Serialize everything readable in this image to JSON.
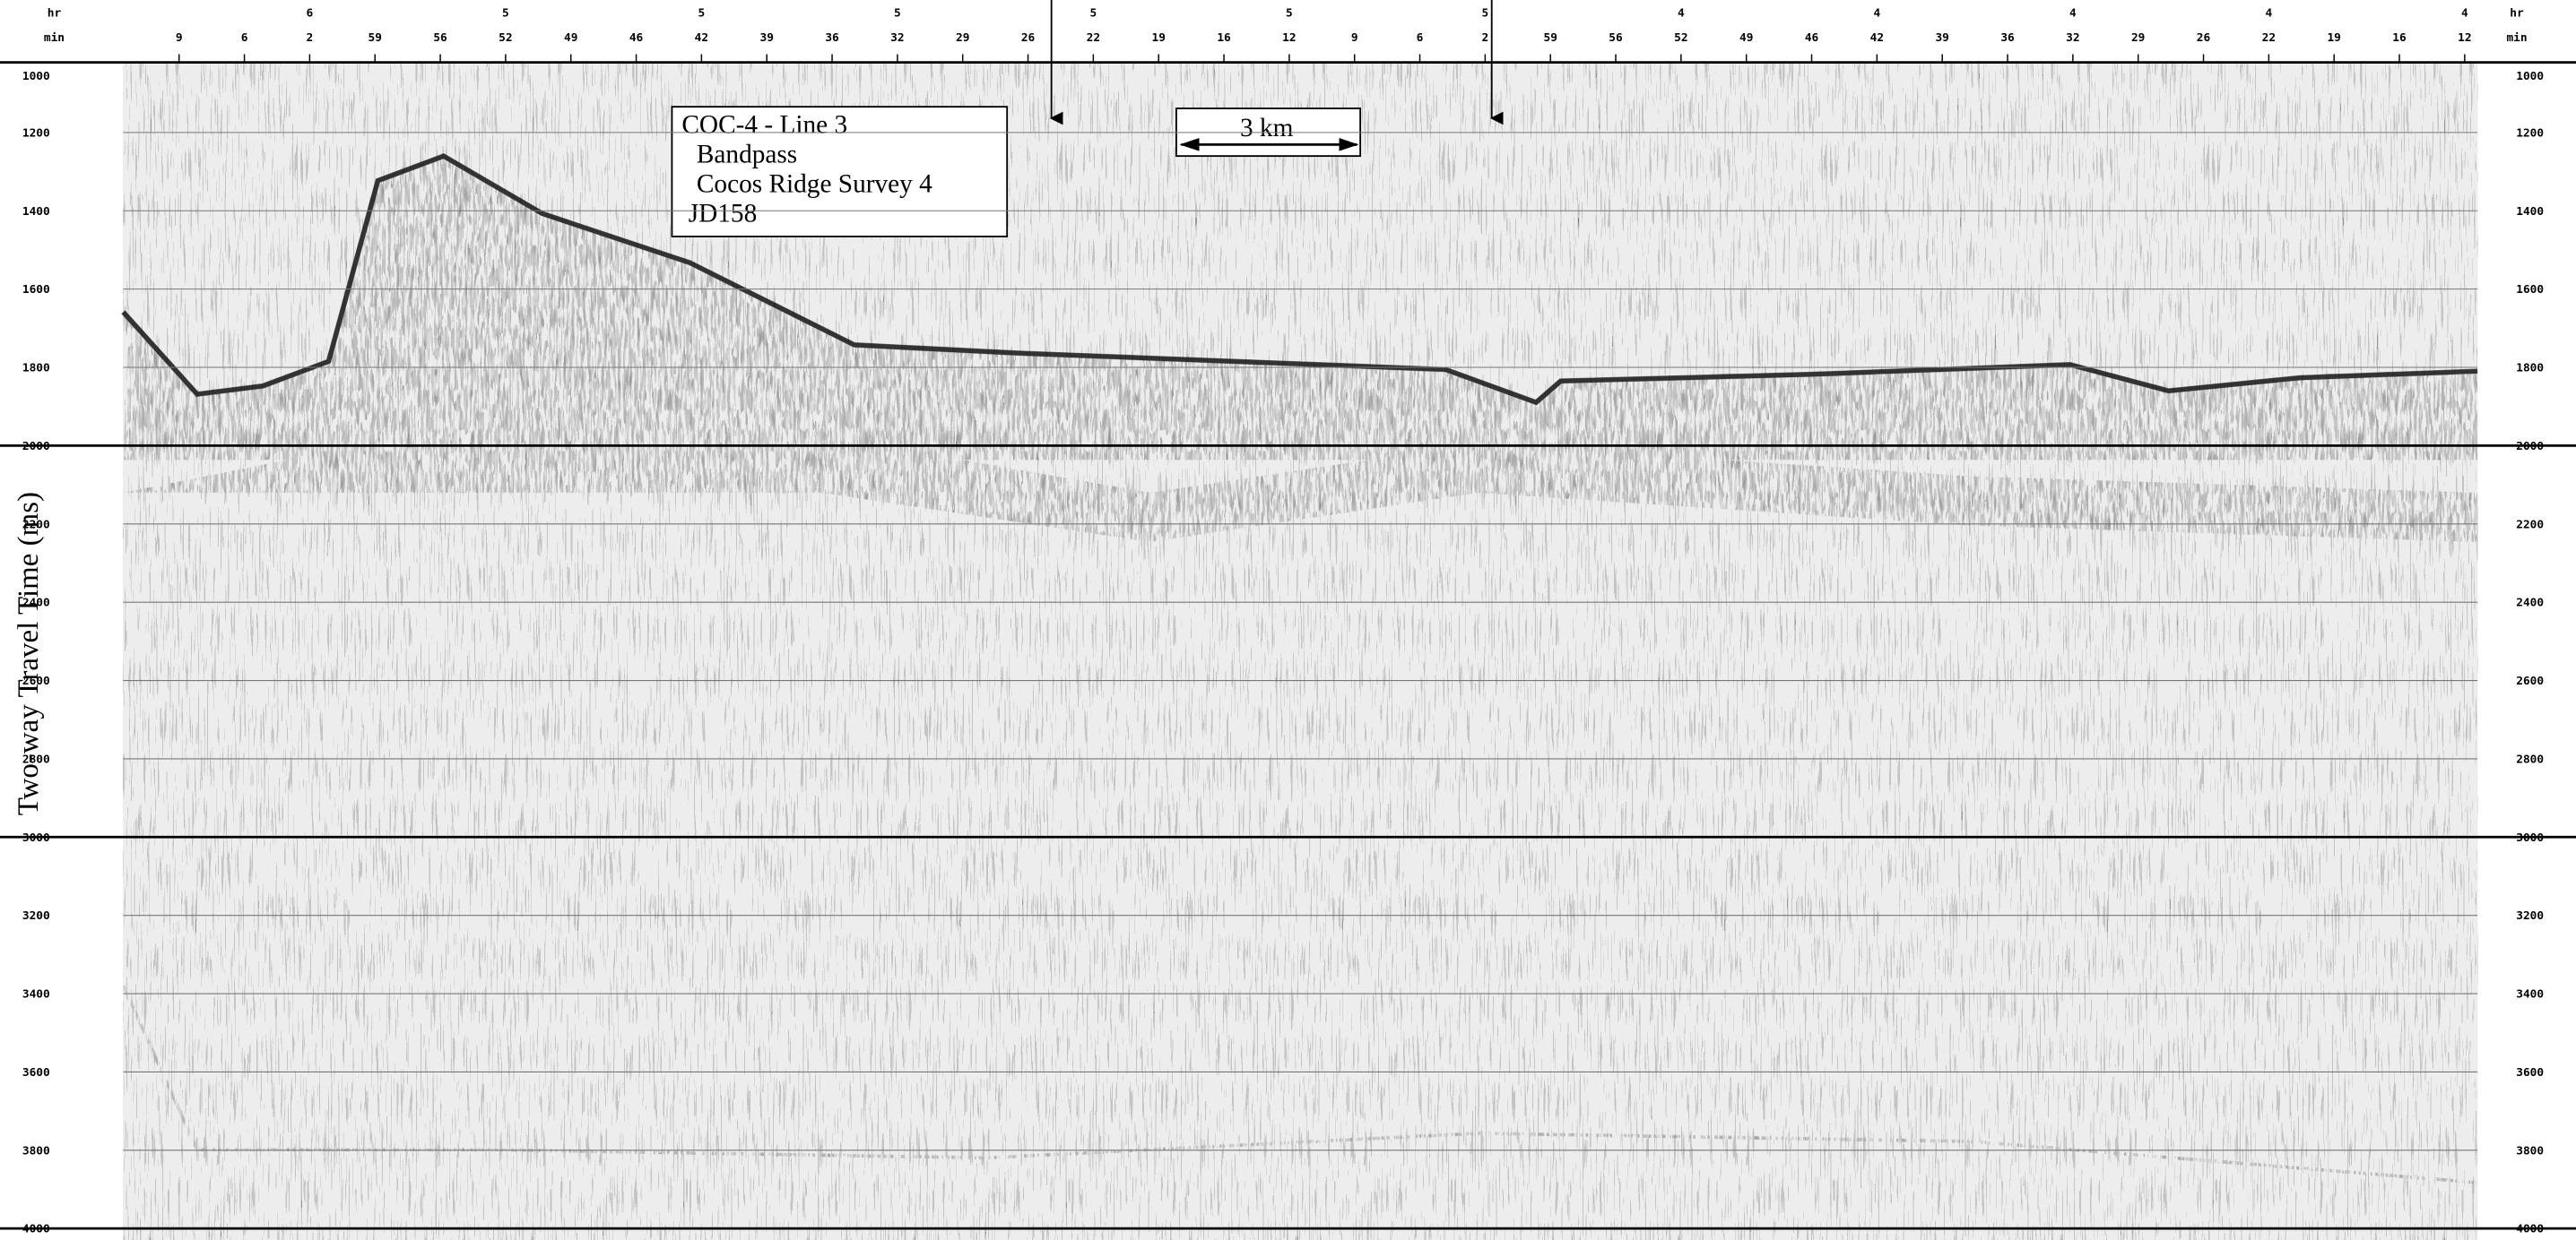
{
  "chart_data": {
    "type": "seismic",
    "ylabel": "Two-way Travel Time (ms)",
    "ylim": [
      1000,
      4000
    ],
    "yticks": [
      1000,
      1200,
      1400,
      1600,
      1800,
      2000,
      2200,
      2400,
      2600,
      2800,
      3000,
      3200,
      3400,
      3600,
      3800,
      4000
    ],
    "grid": true
  },
  "time_axis": {
    "hour_label": "hr",
    "minute_label": "min",
    "hours": [
      6,
      5,
      5,
      5,
      5,
      5,
      5,
      4,
      4,
      4,
      4,
      4
    ],
    "minutes": [
      9,
      6,
      2,
      59,
      56,
      52,
      49,
      46,
      42,
      39,
      36,
      32,
      29,
      26,
      22,
      19,
      16,
      12,
      9,
      6,
      2,
      59,
      56,
      52,
      49,
      46,
      42,
      39,
      36,
      32,
      29,
      26,
      22,
      19,
      16,
      12
    ]
  },
  "annotation": {
    "lines": [
      "COC-4 - Line 3",
      "Bandpass",
      "Cocos Ridge Survey 4",
      "JD158"
    ]
  },
  "scale_bar": {
    "label": "3 km"
  }
}
